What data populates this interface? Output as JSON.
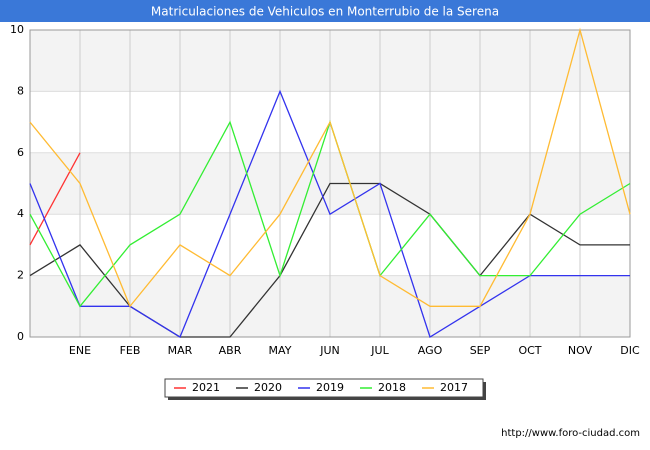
{
  "chart_data": {
    "type": "line",
    "title": "Matriculaciones de Vehiculos en Monterrubio de la Serena",
    "categories": [
      null,
      "ENE",
      "FEB",
      "MAR",
      "ABR",
      "MAY",
      "JUN",
      "JUL",
      "AGO",
      "SEP",
      "OCT",
      "NOV",
      "DIC"
    ],
    "series": [
      {
        "name": "2021",
        "color": "#ff3333",
        "values": [
          3,
          6,
          null,
          null,
          null,
          null,
          null,
          null,
          null,
          null,
          null,
          null,
          null
        ]
      },
      {
        "name": "2020",
        "color": "#333333",
        "values": [
          2,
          3,
          1,
          0,
          0,
          2,
          5,
          5,
          4,
          2,
          4,
          3,
          3
        ]
      },
      {
        "name": "2019",
        "color": "#3333ee",
        "values": [
          5,
          1,
          1,
          0,
          4,
          8,
          4,
          5,
          0,
          1,
          2,
          2,
          2
        ]
      },
      {
        "name": "2018",
        "color": "#33ee33",
        "values": [
          4,
          1,
          3,
          4,
          7,
          2,
          7,
          2,
          4,
          2,
          2,
          4,
          5
        ]
      },
      {
        "name": "2017",
        "color": "#ffbb33",
        "values": [
          7,
          5,
          1,
          3,
          2,
          4,
          7,
          2,
          1,
          1,
          4,
          10,
          4
        ]
      }
    ],
    "ylim": [
      0,
      10
    ],
    "yticks": [
      0,
      2,
      4,
      6,
      8,
      10
    ],
    "grid": true,
    "legend": "bottom",
    "source": "http://www.foro-ciudad.com"
  }
}
